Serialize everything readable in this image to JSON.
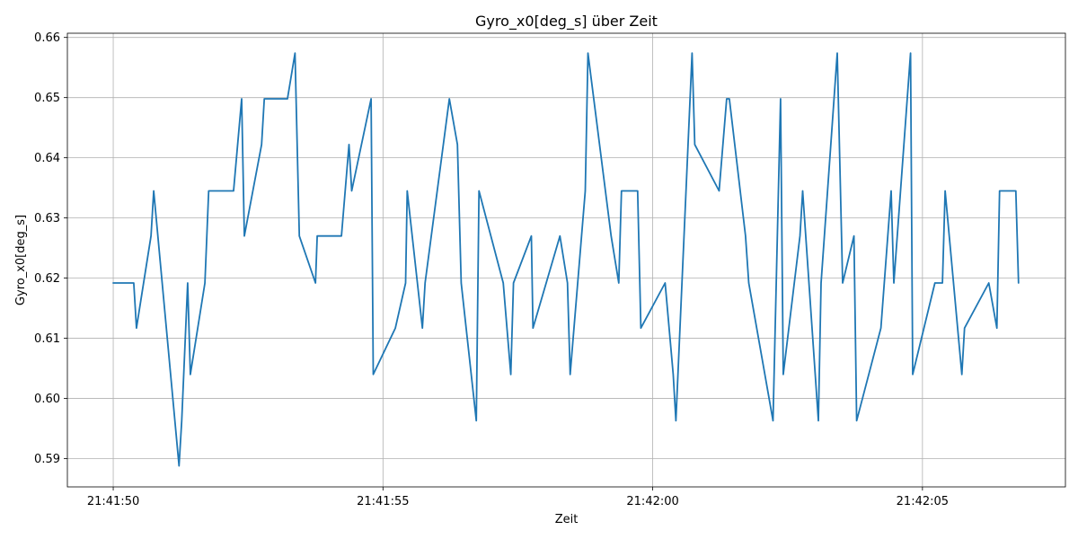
{
  "chart_data": {
    "type": "line",
    "title": "Gyro_x0[deg_s] über Zeit",
    "xlabel": "Zeit",
    "ylabel": "Gyro_x0[deg_s]",
    "x_unit": "seconds after 21:41:50",
    "xlim": [
      -0.85,
      17.65
    ],
    "ylim": [
      0.5853,
      0.6607
    ],
    "x_ticks": [
      {
        "value": 0,
        "label": "21:41:50"
      },
      {
        "value": 5,
        "label": "21:41:55"
      },
      {
        "value": 10,
        "label": "21:42:00"
      },
      {
        "value": 15,
        "label": "21:42:05"
      }
    ],
    "y_ticks": [
      {
        "value": 0.59,
        "label": "0.59"
      },
      {
        "value": 0.6,
        "label": "0.60"
      },
      {
        "value": 0.61,
        "label": "0.61"
      },
      {
        "value": 0.62,
        "label": "0.62"
      },
      {
        "value": 0.63,
        "label": "0.63"
      },
      {
        "value": 0.64,
        "label": "0.64"
      },
      {
        "value": 0.65,
        "label": "0.65"
      },
      {
        "value": 0.66,
        "label": "0.66"
      }
    ],
    "grid": true,
    "series": [
      {
        "color": "#1f77b4",
        "x": [
          0.0,
          0.38,
          0.43,
          0.7,
          0.75,
          1.22,
          1.27,
          1.38,
          1.43,
          1.7,
          1.77,
          2.23,
          2.38,
          2.43,
          2.75,
          2.8,
          3.23,
          3.37,
          3.45,
          3.75,
          3.78,
          4.23,
          4.37,
          4.42,
          4.78,
          4.82,
          5.23,
          5.42,
          5.45,
          5.73,
          5.78,
          6.23,
          6.38,
          6.45,
          6.73,
          6.78,
          7.23,
          7.37,
          7.42,
          7.75,
          7.78,
          8.28,
          8.42,
          8.47,
          8.75,
          8.8,
          9.23,
          9.37,
          9.42,
          9.53,
          9.72,
          9.78,
          10.23,
          10.38,
          10.43,
          10.73,
          10.78,
          11.23,
          11.37,
          11.42,
          11.72,
          11.78,
          12.23,
          12.37,
          12.42,
          12.73,
          12.78,
          13.07,
          13.12,
          13.42,
          13.52,
          13.73,
          13.78,
          14.23,
          14.42,
          14.47,
          14.78,
          14.82,
          15.23,
          15.37,
          15.42,
          15.73,
          15.78,
          16.23,
          16.38,
          16.43,
          16.73,
          16.78
        ],
        "y": [
          0.6192,
          0.6192,
          0.6117,
          0.627,
          0.6345,
          0.5888,
          0.5963,
          0.6192,
          0.604,
          0.6192,
          0.6345,
          0.6345,
          0.6498,
          0.627,
          0.6422,
          0.6498,
          0.6498,
          0.6574,
          0.627,
          0.6192,
          0.627,
          0.627,
          0.6422,
          0.6345,
          0.6498,
          0.604,
          0.6117,
          0.6192,
          0.6345,
          0.6117,
          0.6192,
          0.6498,
          0.6422,
          0.6192,
          0.5963,
          0.6345,
          0.6192,
          0.604,
          0.6192,
          0.627,
          0.6117,
          0.627,
          0.6192,
          0.604,
          0.6345,
          0.6574,
          0.627,
          0.6192,
          0.6345,
          0.6345,
          0.6345,
          0.6117,
          0.6192,
          0.604,
          0.5963,
          0.6574,
          0.6422,
          0.6345,
          0.6498,
          0.6498,
          0.627,
          0.6192,
          0.5963,
          0.6498,
          0.604,
          0.627,
          0.6345,
          0.5963,
          0.6192,
          0.6574,
          0.6192,
          0.627,
          0.5963,
          0.6117,
          0.6345,
          0.6192,
          0.6574,
          0.604,
          0.6192,
          0.6192,
          0.6345,
          0.604,
          0.6117,
          0.6192,
          0.6117,
          0.6345,
          0.6345,
          0.6192
        ]
      }
    ]
  }
}
